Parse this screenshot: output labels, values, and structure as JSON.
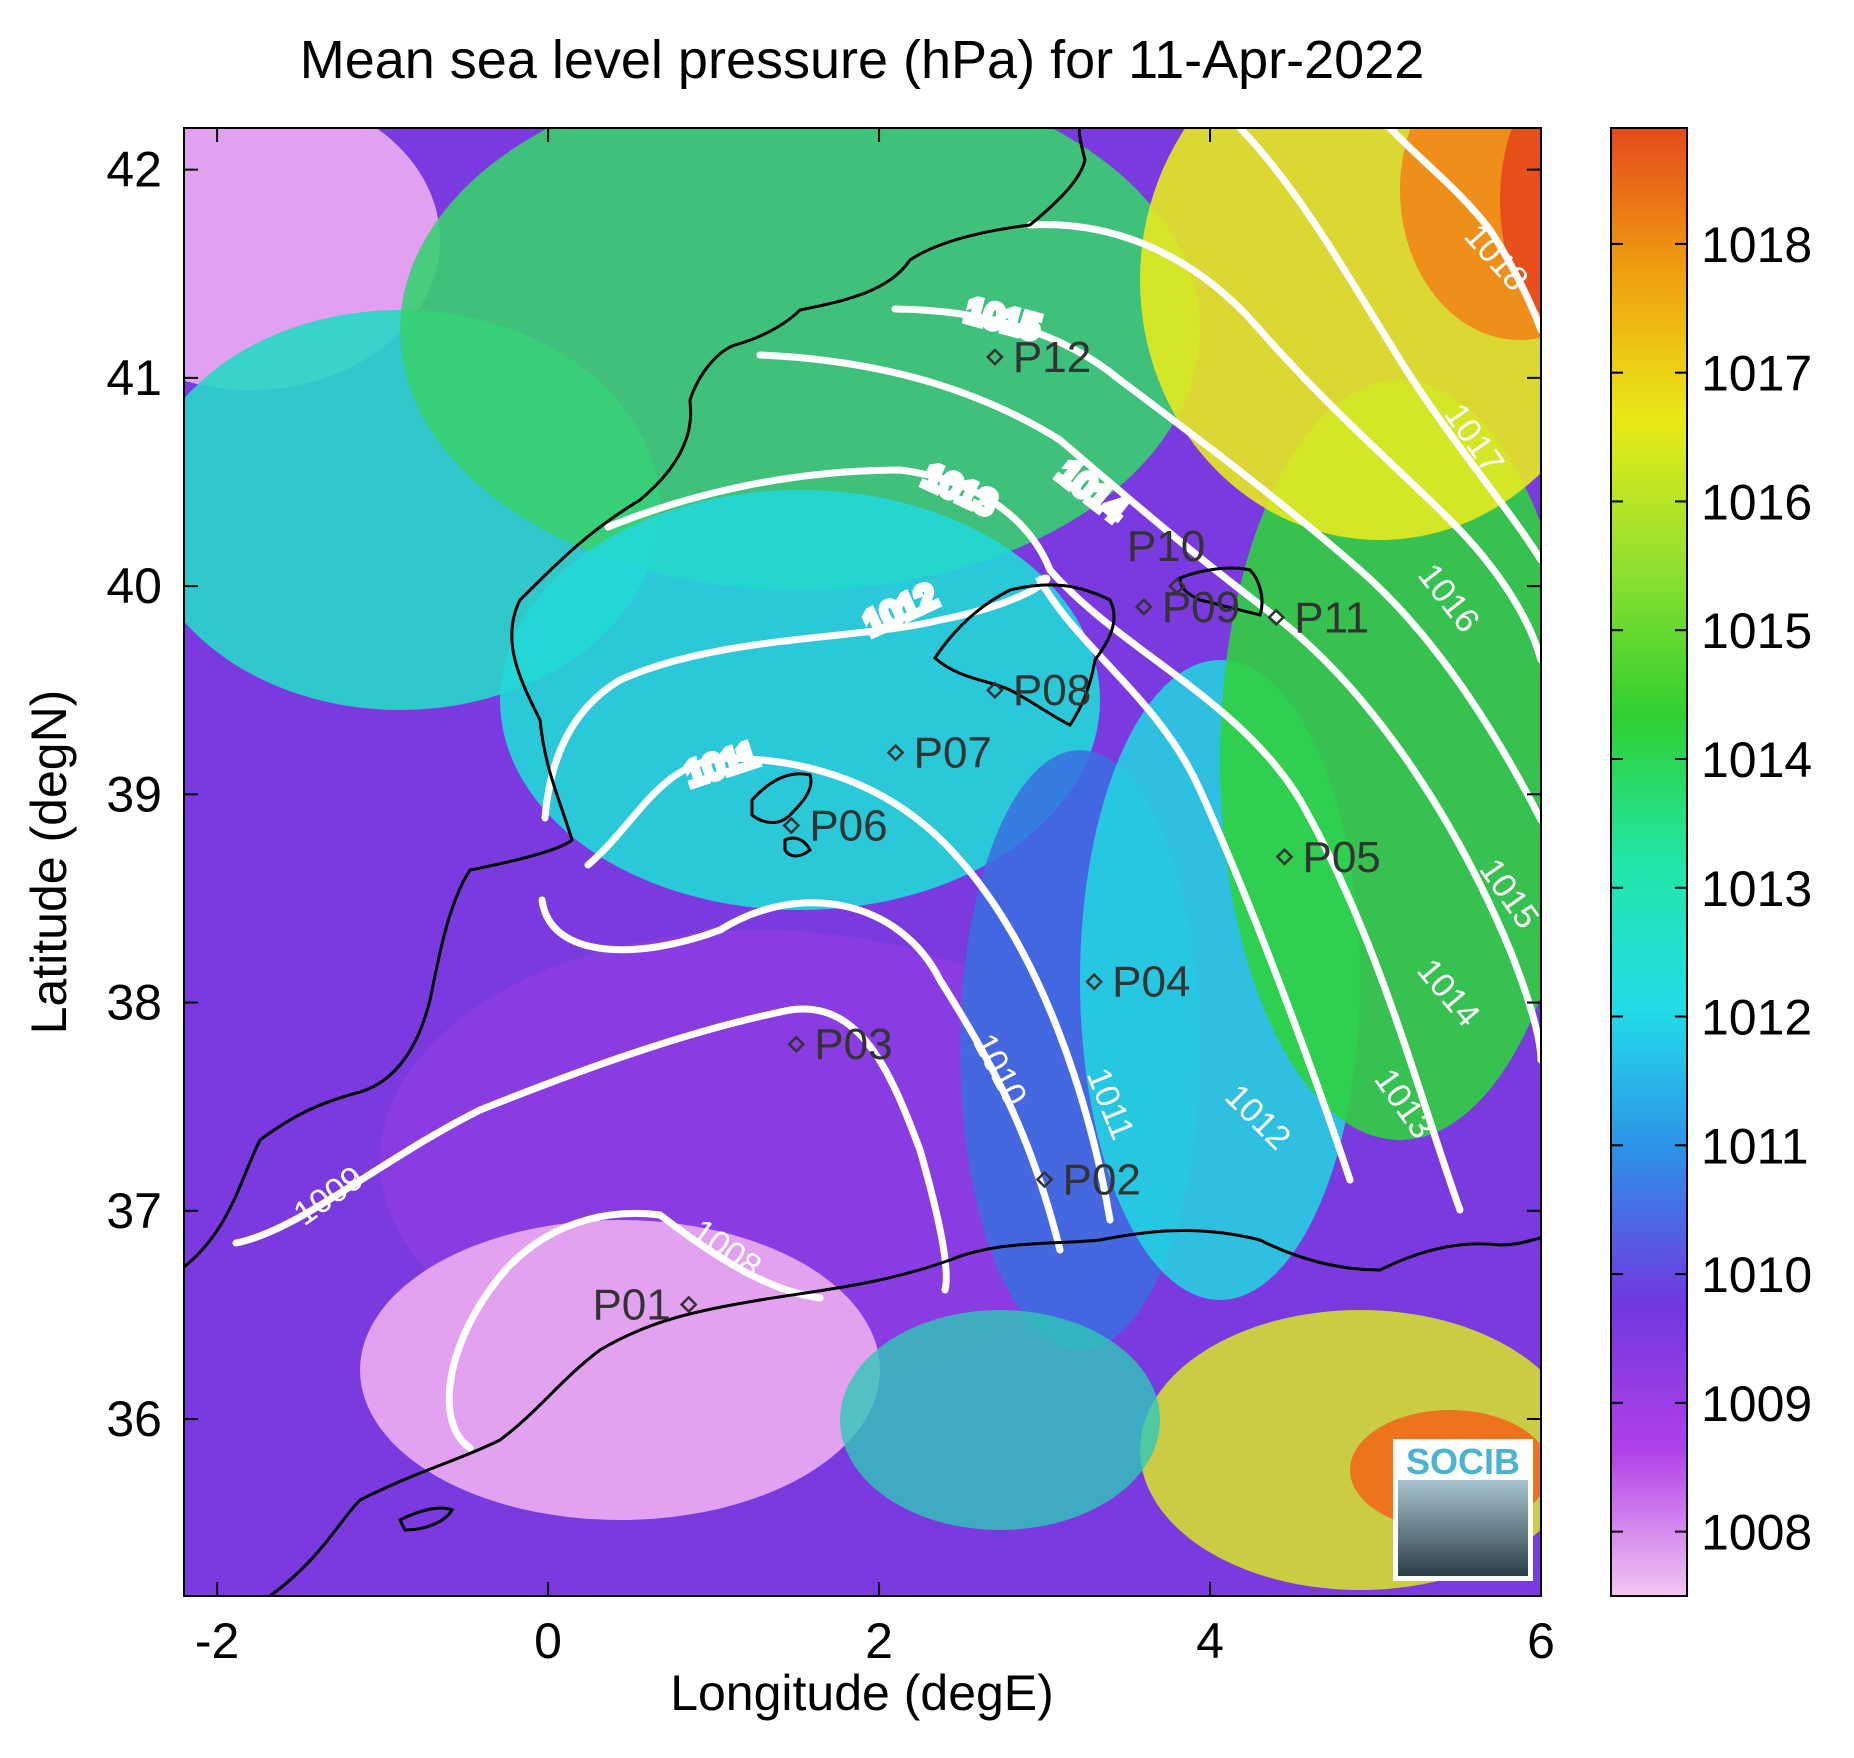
{
  "title": "Mean sea level pressure (hPa) for 11-Apr-2022",
  "axes": {
    "xlabel": "Longitude (degE)",
    "ylabel": "Latitude (degN)",
    "xlim": [
      -2.2,
      6.0
    ],
    "ylim": [
      35.15,
      42.2
    ],
    "xticks": [
      {
        "value": -2,
        "label": "-2"
      },
      {
        "value": 0,
        "label": "0"
      },
      {
        "value": 2,
        "label": "2"
      },
      {
        "value": 4,
        "label": "4"
      },
      {
        "value": 6,
        "label": "6"
      }
    ],
    "yticks": [
      {
        "value": 36,
        "label": "36"
      },
      {
        "value": 37,
        "label": "37"
      },
      {
        "value": 38,
        "label": "38"
      },
      {
        "value": 39,
        "label": "39"
      },
      {
        "value": 40,
        "label": "40"
      },
      {
        "value": 41,
        "label": "41"
      },
      {
        "value": 42,
        "label": "42"
      }
    ]
  },
  "colorbar": {
    "range": [
      1007.5,
      1018.9
    ],
    "ticks": [
      {
        "value": 1008,
        "label": "1008"
      },
      {
        "value": 1009,
        "label": "1009"
      },
      {
        "value": 1010,
        "label": "1010"
      },
      {
        "value": 1011,
        "label": "1011"
      },
      {
        "value": 1012,
        "label": "1012"
      },
      {
        "value": 1013,
        "label": "1013"
      },
      {
        "value": 1014,
        "label": "1014"
      },
      {
        "value": 1015,
        "label": "1015"
      },
      {
        "value": 1016,
        "label": "1016"
      },
      {
        "value": 1017,
        "label": "1017"
      },
      {
        "value": 1018,
        "label": "1018"
      }
    ],
    "colors": [
      "#f3c6f3",
      "#b040e8",
      "#7038e0",
      "#2f8ee8",
      "#22dce8",
      "#22e6a8",
      "#30d030",
      "#90e030",
      "#e8ea18",
      "#f0a010",
      "#e54a1c"
    ]
  },
  "logo": {
    "text": "SOCIB",
    "color": "#4ab4d0"
  },
  "chart_data": {
    "type": "heatmap",
    "variable": "Mean sea level pressure",
    "units": "hPa",
    "date": "11-Apr-2022",
    "contour_levels": [
      {
        "value": 1008,
        "label": "1008"
      },
      {
        "value": 1009,
        "label": "1009"
      },
      {
        "value": 1010,
        "label": "1010"
      },
      {
        "value": 1011,
        "label": "1011"
      },
      {
        "value": 1012,
        "label": "1012"
      },
      {
        "value": 1013,
        "label": "1013"
      },
      {
        "value": 1014,
        "label": "1014"
      },
      {
        "value": 1015,
        "label": "1015"
      },
      {
        "value": 1016,
        "label": "1016"
      },
      {
        "value": 1017,
        "label": "1017"
      },
      {
        "value": 1018,
        "label": "1018"
      }
    ],
    "stations": [
      {
        "name": "P01",
        "lon": 0.85,
        "lat": 36.55
      },
      {
        "name": "P02",
        "lon": 3.0,
        "lat": 37.15
      },
      {
        "name": "P03",
        "lon": 1.5,
        "lat": 37.8
      },
      {
        "name": "P04",
        "lon": 3.3,
        "lat": 38.1
      },
      {
        "name": "P05",
        "lon": 4.45,
        "lat": 38.7
      },
      {
        "name": "P06",
        "lon": 1.47,
        "lat": 38.85
      },
      {
        "name": "P07",
        "lon": 2.1,
        "lat": 39.2
      },
      {
        "name": "P08",
        "lon": 2.7,
        "lat": 39.5
      },
      {
        "name": "P09",
        "lon": 3.6,
        "lat": 39.9
      },
      {
        "name": "P10",
        "lon": 3.8,
        "lat": 40.0
      },
      {
        "name": "P11",
        "lon": 4.4,
        "lat": 39.85
      },
      {
        "name": "P12",
        "lon": 2.7,
        "lat": 41.1
      }
    ]
  }
}
